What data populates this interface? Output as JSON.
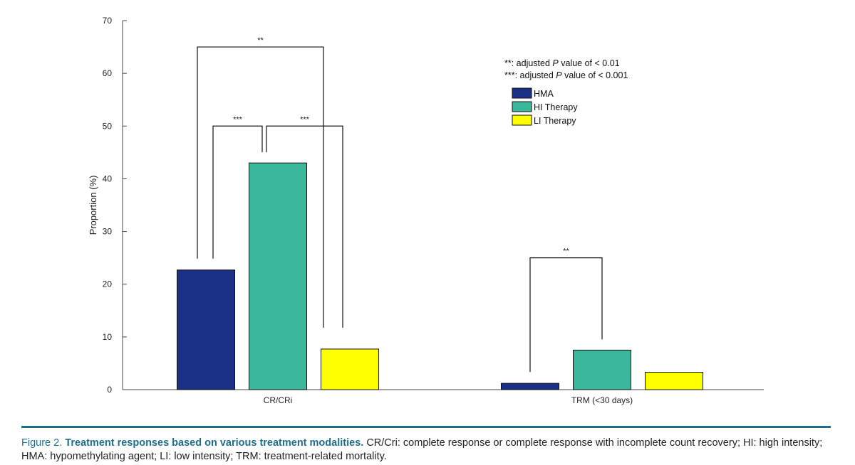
{
  "chart_data": {
    "type": "bar",
    "ylabel": "Proportion (%)",
    "xlabel": "",
    "ylim": [
      0,
      70
    ],
    "yticks": [
      0,
      10,
      20,
      30,
      40,
      50,
      60,
      70
    ],
    "grid": false,
    "legend_position": "top-right",
    "categories": [
      "CR/CRi",
      "TRM (<30 days)"
    ],
    "series": [
      {
        "name": "HMA",
        "color": "#1a2f86",
        "values": [
          22.7,
          1.2
        ]
      },
      {
        "name": "HI Therapy",
        "color": "#3bb89c",
        "values": [
          43.0,
          7.5
        ]
      },
      {
        "name": "LI Therapy",
        "color": "#ffff00",
        "values": [
          7.7,
          3.3
        ]
      }
    ],
    "significance": [
      {
        "category": 0,
        "from_series": 0,
        "to_series": 2,
        "label": "**",
        "level": 65
      },
      {
        "category": 0,
        "from_series": 0,
        "to_series": 1,
        "label": "***",
        "level": 50
      },
      {
        "category": 0,
        "from_series": 1,
        "to_series": 2,
        "label": "***",
        "level": 50
      },
      {
        "category": 1,
        "from_series": 0,
        "to_series": 1,
        "label": "**",
        "level": 25
      }
    ],
    "notes": [
      {
        "prefix": "**: adjusted ",
        "italic": "P",
        "suffix": " value of < 0.01"
      },
      {
        "prefix": "***: adjusted ",
        "italic": "P",
        "suffix": " value of < 0.001"
      }
    ]
  },
  "caption": {
    "label": "Figure 2.",
    "title": "Treatment responses based on various treatment modalities.",
    "text": "CR/Cri: complete response or complete response with incomplete count recovery; HI: high intensity; HMA: hypomethylating agent; LI: low intensity; TRM: treatment-related mortality."
  }
}
